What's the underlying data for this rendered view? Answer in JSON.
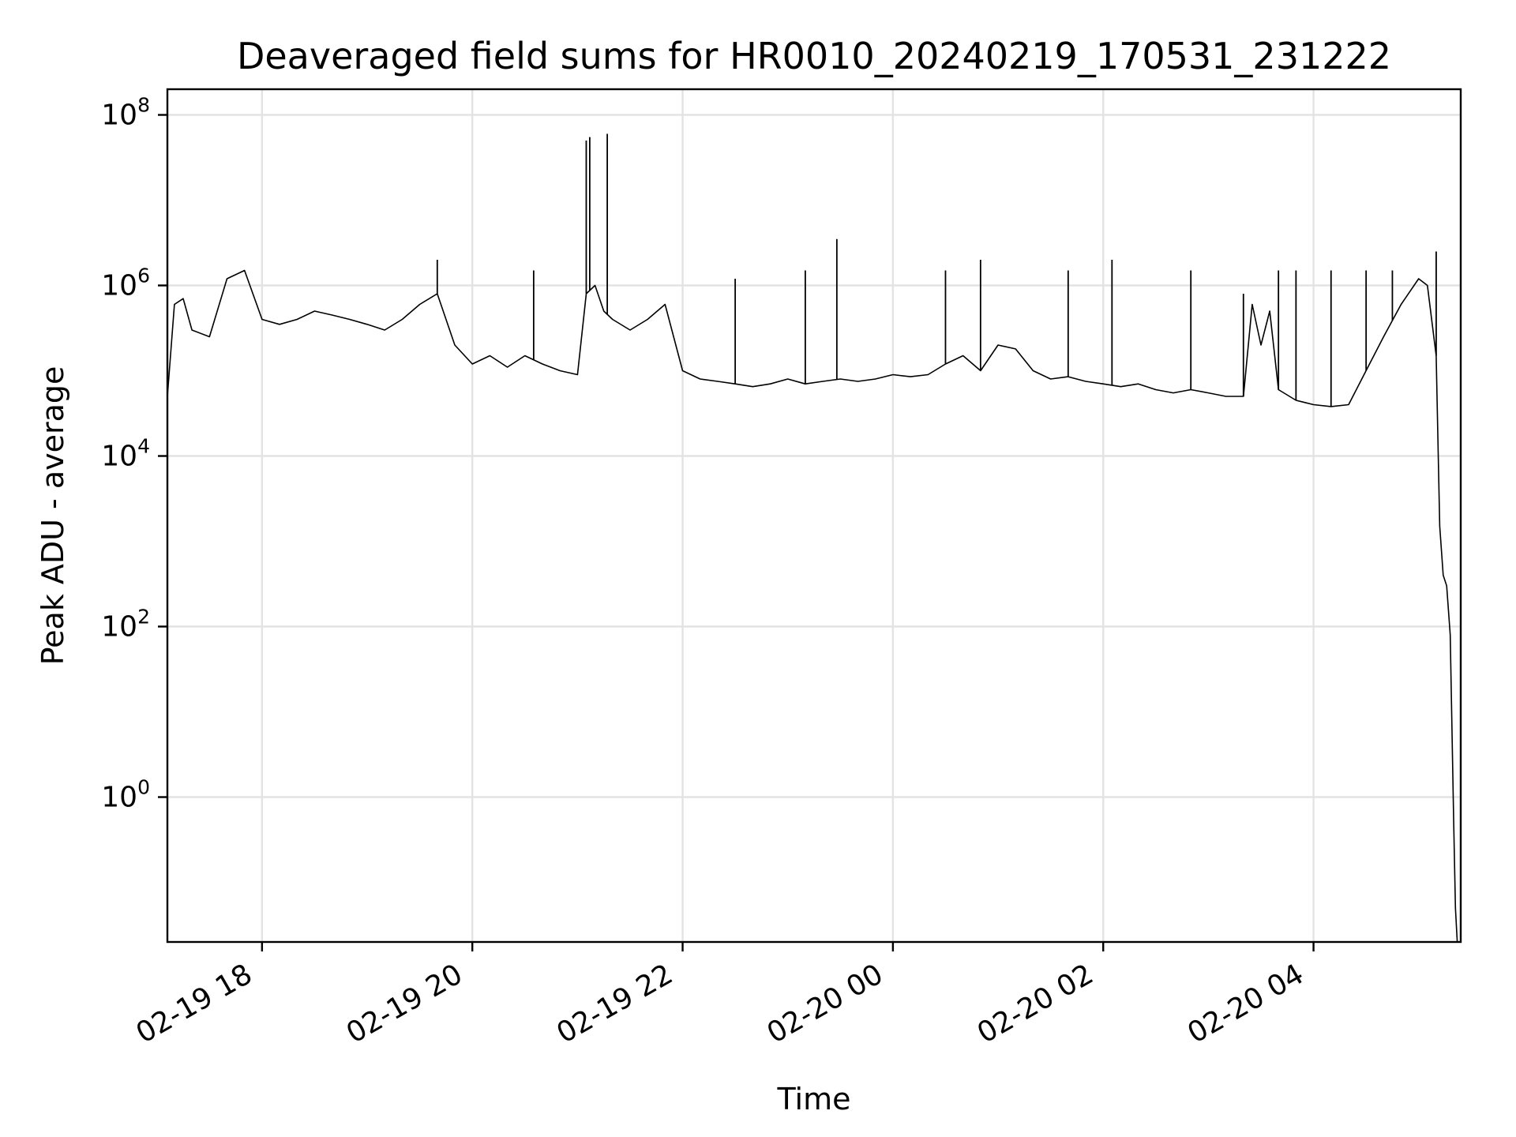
{
  "chart_data": {
    "type": "line",
    "title": "Deaveraged field sums for HR0010_20240219_170531_231222",
    "xlabel": "Time",
    "ylabel": "Peak ADU - average",
    "yscale": "log",
    "ylim": [
      0.02,
      200000000
    ],
    "xlim": [
      "2024-02-19 17:06",
      "2024-02-20 05:24"
    ],
    "grid": true,
    "x_ticks": [
      {
        "label": "02-19 18",
        "t": "2024-02-19 18:00"
      },
      {
        "label": "02-19 20",
        "t": "2024-02-19 20:00"
      },
      {
        "label": "02-19 22",
        "t": "2024-02-19 22:00"
      },
      {
        "label": "02-20 00",
        "t": "2024-02-20 00:00"
      },
      {
        "label": "02-20 02",
        "t": "2024-02-20 02:00"
      },
      {
        "label": "02-20 04",
        "t": "2024-02-20 04:00"
      }
    ],
    "y_ticks": [
      {
        "base": "10",
        "exp": "0",
        "value": 1
      },
      {
        "base": "10",
        "exp": "2",
        "value": 100
      },
      {
        "base": "10",
        "exp": "4",
        "value": 10000
      },
      {
        "base": "10",
        "exp": "6",
        "value": 1000000
      },
      {
        "base": "10",
        "exp": "8",
        "value": 100000000
      }
    ],
    "series": [
      {
        "color": "#000000",
        "x": [
          "2024-02-19 17:06",
          "2024-02-19 17:10",
          "2024-02-19 17:15",
          "2024-02-19 17:20",
          "2024-02-19 17:30",
          "2024-02-19 17:40",
          "2024-02-19 17:50",
          "2024-02-19 18:00",
          "2024-02-19 18:10",
          "2024-02-19 18:20",
          "2024-02-19 18:30",
          "2024-02-19 18:40",
          "2024-02-19 18:50",
          "2024-02-19 19:00",
          "2024-02-19 19:10",
          "2024-02-19 19:20",
          "2024-02-19 19:30",
          "2024-02-19 19:40",
          "2024-02-19 19:50",
          "2024-02-19 20:00",
          "2024-02-19 20:10",
          "2024-02-19 20:20",
          "2024-02-19 20:30",
          "2024-02-19 20:40",
          "2024-02-19 20:50",
          "2024-02-19 21:00",
          "2024-02-19 21:05",
          "2024-02-19 21:10",
          "2024-02-19 21:15",
          "2024-02-19 21:20",
          "2024-02-19 21:30",
          "2024-02-19 21:40",
          "2024-02-19 21:50",
          "2024-02-19 22:00",
          "2024-02-19 22:10",
          "2024-02-19 22:20",
          "2024-02-19 22:30",
          "2024-02-19 22:40",
          "2024-02-19 22:50",
          "2024-02-19 23:00",
          "2024-02-19 23:10",
          "2024-02-19 23:20",
          "2024-02-19 23:30",
          "2024-02-19 23:40",
          "2024-02-19 23:50",
          "2024-02-20 00:00",
          "2024-02-20 00:10",
          "2024-02-20 00:20",
          "2024-02-20 00:30",
          "2024-02-20 00:40",
          "2024-02-20 00:50",
          "2024-02-20 01:00",
          "2024-02-20 01:10",
          "2024-02-20 01:20",
          "2024-02-20 01:30",
          "2024-02-20 01:40",
          "2024-02-20 01:50",
          "2024-02-20 02:00",
          "2024-02-20 02:10",
          "2024-02-20 02:20",
          "2024-02-20 02:30",
          "2024-02-20 02:40",
          "2024-02-20 02:50",
          "2024-02-20 03:00",
          "2024-02-20 03:10",
          "2024-02-20 03:20",
          "2024-02-20 03:25",
          "2024-02-20 03:30",
          "2024-02-20 03:35",
          "2024-02-20 03:40",
          "2024-02-20 03:50",
          "2024-02-20 04:00",
          "2024-02-20 04:10",
          "2024-02-20 04:20",
          "2024-02-20 04:30",
          "2024-02-20 04:40",
          "2024-02-20 04:50",
          "2024-02-20 05:00",
          "2024-02-20 05:05",
          "2024-02-20 05:10",
          "2024-02-20 05:12",
          "2024-02-20 05:14",
          "2024-02-20 05:16",
          "2024-02-20 05:18",
          "2024-02-20 05:20",
          "2024-02-20 05:21",
          "2024-02-20 05:22",
          "2024-02-20 05:23"
        ],
        "y": [
          50000,
          600000,
          700000,
          300000,
          250000,
          1200000,
          1500000,
          400000,
          350000,
          400000,
          500000,
          450000,
          400000,
          350000,
          300000,
          400000,
          600000,
          800000,
          200000,
          120000,
          150000,
          110000,
          150000,
          120000,
          100000,
          90000,
          800000,
          1000000,
          500000,
          400000,
          300000,
          400000,
          600000,
          100000,
          80000,
          75000,
          70000,
          65000,
          70000,
          80000,
          70000,
          75000,
          80000,
          75000,
          80000,
          90000,
          85000,
          90000,
          120000,
          150000,
          100000,
          200000,
          180000,
          100000,
          80000,
          85000,
          75000,
          70000,
          65000,
          70000,
          60000,
          55000,
          60000,
          55000,
          50000,
          50000,
          600000,
          200000,
          500000,
          60000,
          45000,
          40000,
          38000,
          40000,
          100000,
          250000,
          600000,
          1200000,
          1000000,
          150000,
          1500,
          400,
          300,
          80,
          0.5,
          0.05,
          0.02,
          0.02
        ],
        "spikes": [
          {
            "t": "2024-02-19 21:05",
            "y": 50000000
          },
          {
            "t": "2024-02-19 21:07",
            "y": 55000000
          },
          {
            "t": "2024-02-19 21:17",
            "y": 60000000
          },
          {
            "t": "2024-02-19 23:28",
            "y": 3500000
          },
          {
            "t": "2024-02-19 19:40",
            "y": 2000000
          },
          {
            "t": "2024-02-19 20:35",
            "y": 1500000
          },
          {
            "t": "2024-02-19 22:30",
            "y": 1200000
          },
          {
            "t": "2024-02-19 23:10",
            "y": 1500000
          },
          {
            "t": "2024-02-20 00:30",
            "y": 1500000
          },
          {
            "t": "2024-02-20 00:50",
            "y": 2000000
          },
          {
            "t": "2024-02-20 01:40",
            "y": 1500000
          },
          {
            "t": "2024-02-20 02:05",
            "y": 2000000
          },
          {
            "t": "2024-02-20 02:50",
            "y": 1500000
          },
          {
            "t": "2024-02-20 03:20",
            "y": 800000
          },
          {
            "t": "2024-02-20 03:40",
            "y": 1500000
          },
          {
            "t": "2024-02-20 03:50",
            "y": 1500000
          },
          {
            "t": "2024-02-20 04:10",
            "y": 1500000
          },
          {
            "t": "2024-02-20 04:30",
            "y": 1500000
          },
          {
            "t": "2024-02-20 04:45",
            "y": 1500000
          },
          {
            "t": "2024-02-20 05:10",
            "y": 2500000
          }
        ]
      }
    ]
  }
}
